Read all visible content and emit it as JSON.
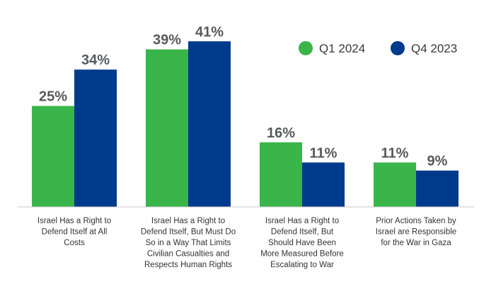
{
  "colors": {
    "series1": "#39b54a",
    "series2": "#003a8c",
    "axis": "#c8c8c8"
  },
  "legend": {
    "items": [
      "Q1 2024",
      "Q4 2023"
    ],
    "placement": "top-right"
  },
  "chart_data": {
    "type": "bar",
    "title": "",
    "xlabel": "",
    "ylabel": "",
    "ylim": [
      0,
      45
    ],
    "grid": false,
    "legend_placement": "top-right",
    "categories": [
      [
        "Israel Has a Right to",
        "Defend Itself at All",
        "Costs"
      ],
      [
        "Israel Has a Right to",
        "Defend Itself, But Must Do",
        "So in a Way That Limits",
        "Civilian Casualties and",
        "Respects Human Rights"
      ],
      [
        "Israel Has a Right to",
        "Defend Itself, But",
        "Should Have Been",
        "More Measured Before",
        "Escalating to War"
      ],
      [
        "Prior Actions Taken by",
        "Israel are Responsible",
        "for the War in Gaza"
      ]
    ],
    "series": [
      {
        "name": "Q1 2024",
        "color": "#39b54a",
        "values": [
          25,
          39,
          16,
          11
        ],
        "labels": [
          "25%",
          "39%",
          "16%",
          "11%"
        ]
      },
      {
        "name": "Q4 2023",
        "color": "#003a8c",
        "values": [
          34,
          41,
          11,
          9
        ],
        "labels": [
          "34%",
          "41%",
          "11%",
          "9%"
        ]
      }
    ]
  }
}
